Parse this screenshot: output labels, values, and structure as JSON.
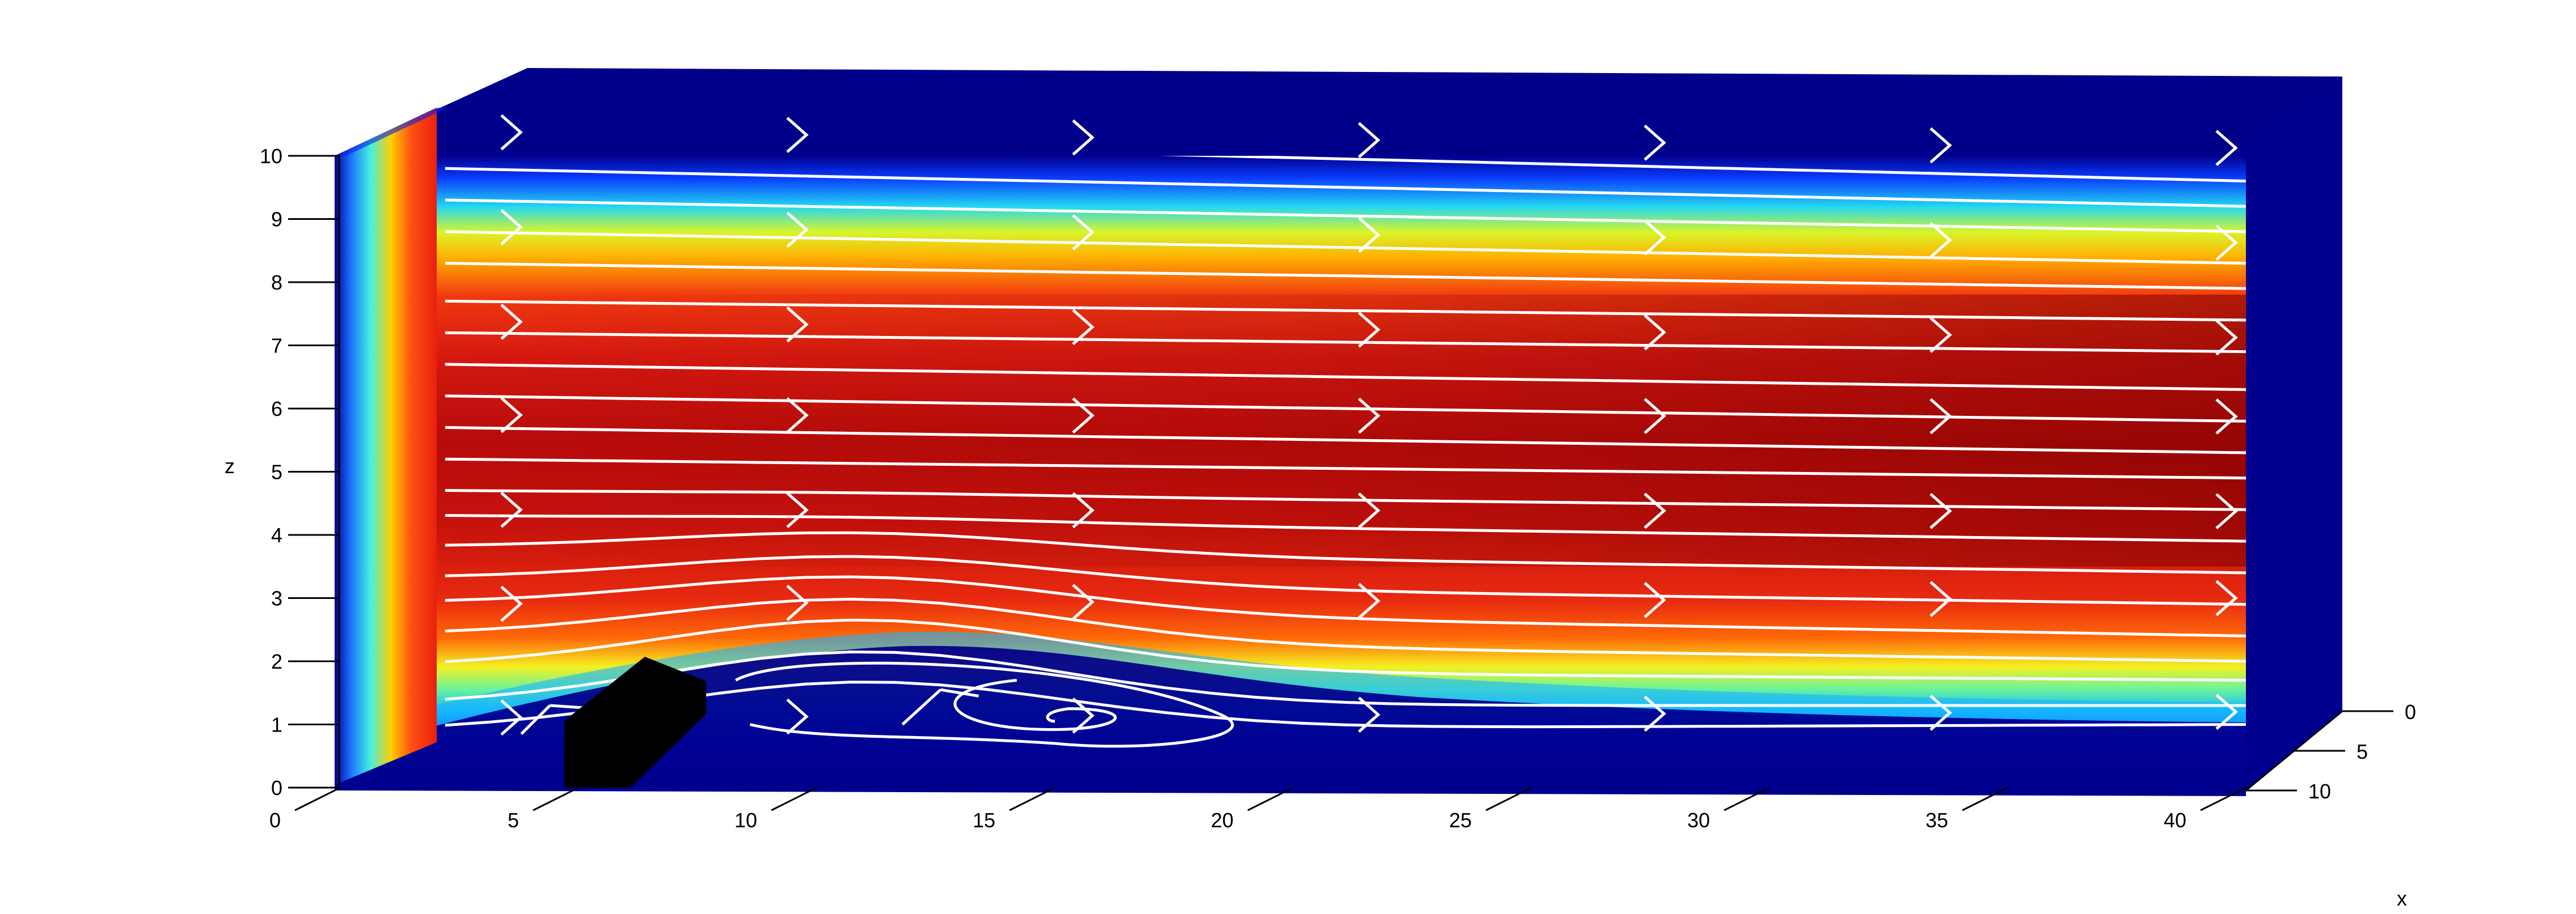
{
  "chart_data": {
    "type": "heatmap",
    "title": "",
    "xlabel": "x",
    "ylabel": "",
    "zlabel": "z",
    "xlim": [
      0,
      40
    ],
    "ylim": [
      0,
      10
    ],
    "zlim": [
      0,
      10
    ],
    "x_ticks": [
      "0",
      "5",
      "10",
      "15",
      "20",
      "25",
      "30",
      "35",
      "40"
    ],
    "y_ticks": [
      "0",
      "5",
      "10"
    ],
    "z_ticks": [
      "0",
      "1",
      "2",
      "3",
      "4",
      "5",
      "6",
      "7",
      "8",
      "9",
      "10"
    ],
    "colormap": [
      "#00007f",
      "#0000ff",
      "#00ffff",
      "#ffff00",
      "#ff0000",
      "#7f0000"
    ],
    "streamline_color": "#ffffff",
    "obstacle_color": "#000000",
    "obstacle": {
      "x_start": 5,
      "x_end": 8,
      "z_top": 1.6
    },
    "recirculation_center": {
      "x": 15,
      "z": 1.05
    },
    "streamline_z_at_inlet": [
      0.9,
      1.3,
      1.9,
      2.4,
      2.9,
      3.3,
      3.8,
      4.3,
      4.7,
      5.2,
      5.7,
      6.2,
      6.7,
      7.2,
      7.7,
      8.3,
      8.8,
      9.3,
      9.8,
      10.3
    ],
    "streamline_z_at_outlet": [
      1.0,
      1.3,
      1.7,
      2.0,
      2.4,
      2.9,
      3.4,
      3.9,
      4.4,
      4.9,
      5.3,
      5.8,
      6.3,
      6.9,
      7.4,
      7.9,
      8.3,
      8.8,
      9.2,
      9.6
    ],
    "arrow_x_positions": [
      4,
      10,
      16,
      22,
      28,
      34,
      40
    ],
    "arrow_z_positions": [
      1.1,
      2.9,
      4.4,
      5.9,
      7.4,
      8.9,
      10.4
    ]
  }
}
